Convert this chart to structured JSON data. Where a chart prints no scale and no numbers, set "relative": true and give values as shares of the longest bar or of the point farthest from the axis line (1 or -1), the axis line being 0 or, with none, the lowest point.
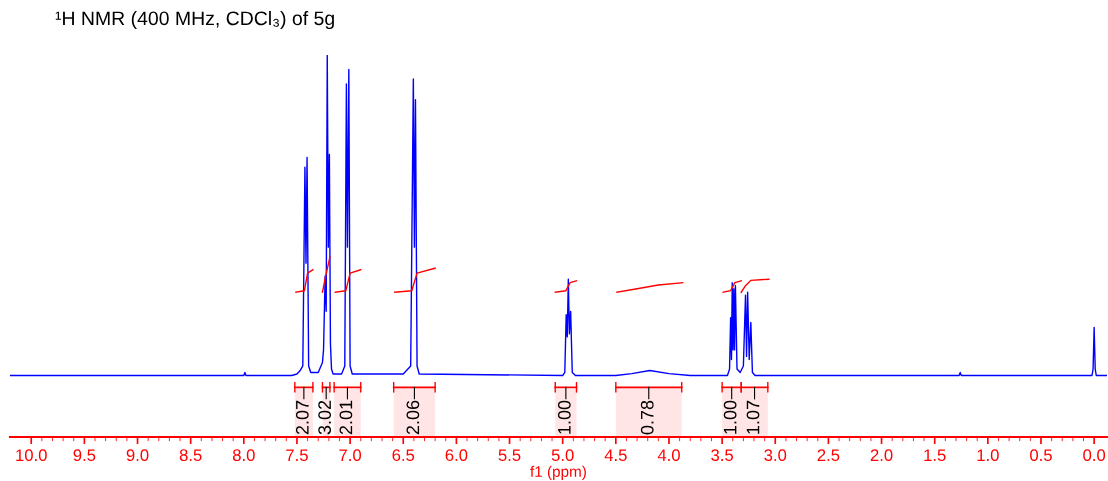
{
  "chart_data": {
    "type": "line",
    "relative": true,
    "title": "¹H NMR (400 MHz, CDCl₃) of 5g",
    "xlabel": "f1 (ppm)",
    "xlim": [
      10.2,
      -0.12
    ],
    "xticks": [
      {
        "value": 10,
        "label": "10.0"
      },
      9.5,
      {
        "value": 9,
        "label": "9.0"
      },
      8.5,
      {
        "value": 8,
        "label": "8.0"
      },
      7.5,
      {
        "value": 7,
        "label": "7.0"
      },
      6.5,
      {
        "value": 6,
        "label": "6.0"
      },
      5.5,
      {
        "value": 5,
        "label": "5.0"
      },
      4.5,
      {
        "value": 4,
        "label": "4.0"
      },
      3.5,
      {
        "value": 3,
        "label": "3.0"
      },
      2.5,
      {
        "value": 2,
        "label": "2.0"
      },
      1.5,
      {
        "value": 1,
        "label": "1.0"
      },
      0.5,
      {
        "value": 0,
        "label": "0.0"
      }
    ],
    "grid": false,
    "legend": false,
    "series": [
      {
        "type": "line",
        "color": "#0000ff",
        "x": [
          10.2,
          8.0,
          7.99,
          7.98,
          7.55,
          7.5,
          7.47,
          7.445,
          7.425,
          7.415,
          7.405,
          7.39,
          7.37,
          7.3,
          7.26,
          7.25,
          7.235,
          7.225,
          7.215,
          7.205,
          7.195,
          7.185,
          7.175,
          7.16,
          7.08,
          7.05,
          7.035,
          7.025,
          7.012,
          7.0,
          6.98,
          6.5,
          6.43,
          6.405,
          6.395,
          6.385,
          6.37,
          6.35,
          5.0,
          4.98,
          4.967,
          4.957,
          4.947,
          4.937,
          4.925,
          4.91,
          4.88,
          4.5,
          4.35,
          4.18,
          4.0,
          3.8,
          3.45,
          3.43,
          3.42,
          3.412,
          3.405,
          3.398,
          3.39,
          3.383,
          3.375,
          3.36,
          3.33,
          3.3,
          3.28,
          3.27,
          3.26,
          3.245,
          3.23,
          3.215,
          3.19,
          1.27,
          1.26,
          1.25,
          0.02,
          0.01,
          0.0,
          -0.01,
          -0.02,
          -0.12
        ],
        "values": [
          0.161,
          0.161,
          0.169,
          0.161,
          0.161,
          0.165,
          0.174,
          0.186,
          0.706,
          0.455,
          0.732,
          0.186,
          0.169,
          0.169,
          0.195,
          0.228,
          0.421,
          0.329,
          1.0,
          0.497,
          0.74,
          0.245,
          0.178,
          0.165,
          0.165,
          0.186,
          0.924,
          0.497,
          0.962,
          0.186,
          0.165,
          0.165,
          0.186,
          0.937,
          0.497,
          0.883,
          0.186,
          0.165,
          0.161,
          0.169,
          0.32,
          0.262,
          0.413,
          0.27,
          0.329,
          0.169,
          0.161,
          0.161,
          0.166,
          0.174,
          0.166,
          0.161,
          0.161,
          0.178,
          0.312,
          0.203,
          0.404,
          0.228,
          0.388,
          0.228,
          0.396,
          0.178,
          0.169,
          0.186,
          0.371,
          0.211,
          0.379,
          0.203,
          0.3,
          0.169,
          0.161,
          0.161,
          0.169,
          0.161,
          0.161,
          0.178,
          0.287,
          0.178,
          0.161,
          0.161
        ]
      },
      {
        "type": "line",
        "color": "#ff0000",
        "x": [
          7.51,
          7.43,
          7.4,
          7.35
        ],
        "values": [
          0.379,
          0.383,
          0.429,
          0.438
        ]
      },
      {
        "type": "line",
        "color": "#ff0000",
        "x": [
          7.26,
          7.23,
          7.19
        ],
        "values": [
          0.379,
          0.421,
          0.471
        ]
      },
      {
        "type": "line",
        "color": "#ff0000",
        "x": [
          7.14,
          7.04,
          7.0,
          6.9
        ],
        "values": [
          0.379,
          0.383,
          0.429,
          0.438
        ]
      },
      {
        "type": "line",
        "color": "#ff0000",
        "x": [
          6.58,
          6.42,
          6.37,
          6.2
        ],
        "values": [
          0.379,
          0.383,
          0.429,
          0.442
        ]
      },
      {
        "type": "line",
        "color": "#ff0000",
        "x": [
          5.07,
          4.97,
          4.93,
          4.87
        ],
        "values": [
          0.379,
          0.383,
          0.404,
          0.409
        ]
      },
      {
        "type": "line",
        "color": "#ff0000",
        "x": [
          4.49,
          4.3,
          4.1,
          3.87
        ],
        "values": [
          0.379,
          0.388,
          0.398,
          0.404
        ]
      },
      {
        "type": "line",
        "color": "#ff0000",
        "x": [
          3.49,
          3.42,
          3.38,
          3.32
        ],
        "values": [
          0.379,
          0.383,
          0.404,
          0.409
        ]
      },
      {
        "type": "line",
        "color": "#ff0000",
        "x": [
          3.32,
          3.28,
          3.23,
          3.06
        ],
        "values": [
          0.379,
          0.396,
          0.41,
          0.413
        ]
      }
    ],
    "bands": [
      {
        "axis": "x",
        "from": 7.52,
        "to": 7.35,
        "label": "2.07",
        "color": "#ff0000"
      },
      {
        "axis": "x",
        "from": 7.26,
        "to": 7.19,
        "label": "3.02",
        "color": "#ff0000"
      },
      {
        "axis": "x",
        "from": 7.15,
        "to": 6.9,
        "label": "2.01",
        "color": "#ff0000"
      },
      {
        "axis": "x",
        "from": 6.59,
        "to": 6.2,
        "label": "2.06",
        "color": "#ff0000"
      },
      {
        "axis": "x",
        "from": 5.07,
        "to": 4.87,
        "label": "1.00",
        "color": "#ff0000"
      },
      {
        "axis": "x",
        "from": 4.5,
        "to": 3.88,
        "label": "0.78",
        "color": "#ff0000"
      },
      {
        "axis": "x",
        "from": 3.5,
        "to": 3.32,
        "label": "1.00",
        "color": "#ff0000"
      },
      {
        "axis": "x",
        "from": 3.32,
        "to": 3.07,
        "label": "1.07",
        "color": "#ff0000"
      }
    ]
  }
}
